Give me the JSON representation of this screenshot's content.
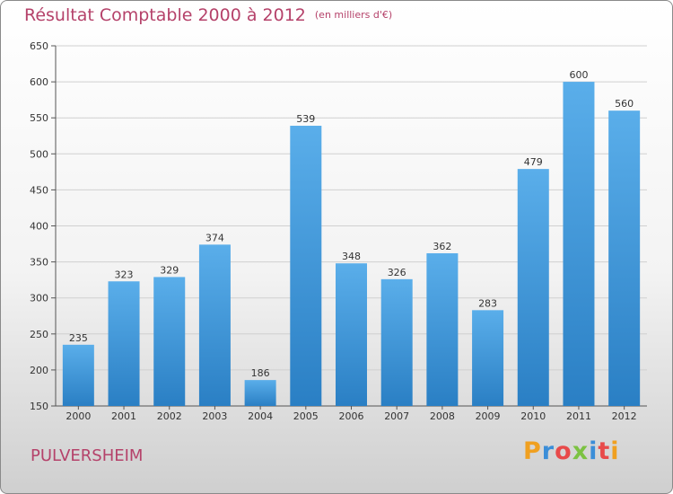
{
  "header": {
    "title": "Résultat Comptable 2000 à 2012",
    "unit": "(en milliers d'€)"
  },
  "footer": {
    "city": "PULVERSHEIM",
    "logo": "Proxiti",
    "logo_colors": [
      "#f0a020",
      "#3b8ed8",
      "#e84a4a",
      "#7cc242",
      "#3b8ed8",
      "#e84a4a",
      "#f0a020"
    ]
  },
  "chart_data": {
    "type": "bar",
    "title": "Résultat Comptable 2000 à 2012",
    "subtitle": "(en milliers d'€)",
    "xlabel": "",
    "ylabel": "",
    "categories": [
      "2000",
      "2001",
      "2002",
      "2003",
      "2004",
      "2005",
      "2006",
      "2007",
      "2008",
      "2009",
      "2010",
      "2011",
      "2012"
    ],
    "values": [
      235,
      323,
      329,
      374,
      186,
      539,
      348,
      326,
      362,
      283,
      479,
      600,
      560
    ],
    "ylim": [
      150,
      650
    ],
    "yticks": [
      150,
      200,
      250,
      300,
      350,
      400,
      450,
      500,
      550,
      600,
      650
    ],
    "grid": true,
    "bar_color_top": "#5aaeea",
    "bar_color_bottom": "#2a7fc4"
  }
}
